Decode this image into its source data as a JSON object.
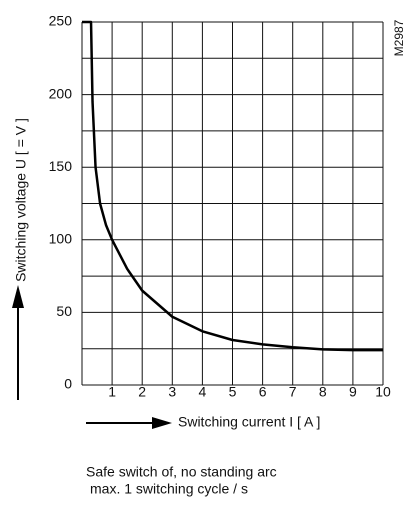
{
  "chart_data": {
    "type": "line",
    "ylabel": "Switching voltage U  [ = V ]",
    "xlabel": "Switching current  I   [ A ]",
    "code": "M2987",
    "notes": [
      "Safe switch of, no standing arc",
      "max. 1 switching cycle / s"
    ],
    "x": [
      0,
      0.3,
      0.35,
      0.45,
      0.6,
      0.8,
      1,
      1.5,
      2,
      3,
      4,
      5,
      6,
      7,
      8,
      9,
      10
    ],
    "series": [
      {
        "color": "#000000",
        "values": [
          250,
          250,
          195,
          150,
          125,
          110,
          100,
          80,
          65,
          47,
          37,
          31,
          28,
          26,
          24.5,
          24,
          24
        ]
      }
    ],
    "xlim": [
      0,
      10
    ],
    "xticks": [
      1,
      2,
      3,
      4,
      5,
      6,
      7,
      8,
      9,
      10
    ],
    "ylim": [
      0,
      250
    ],
    "yticks": [
      0,
      50,
      100,
      150,
      200,
      250
    ],
    "minor_yticks": [
      25,
      75,
      125,
      175,
      225
    ],
    "grid": true
  }
}
